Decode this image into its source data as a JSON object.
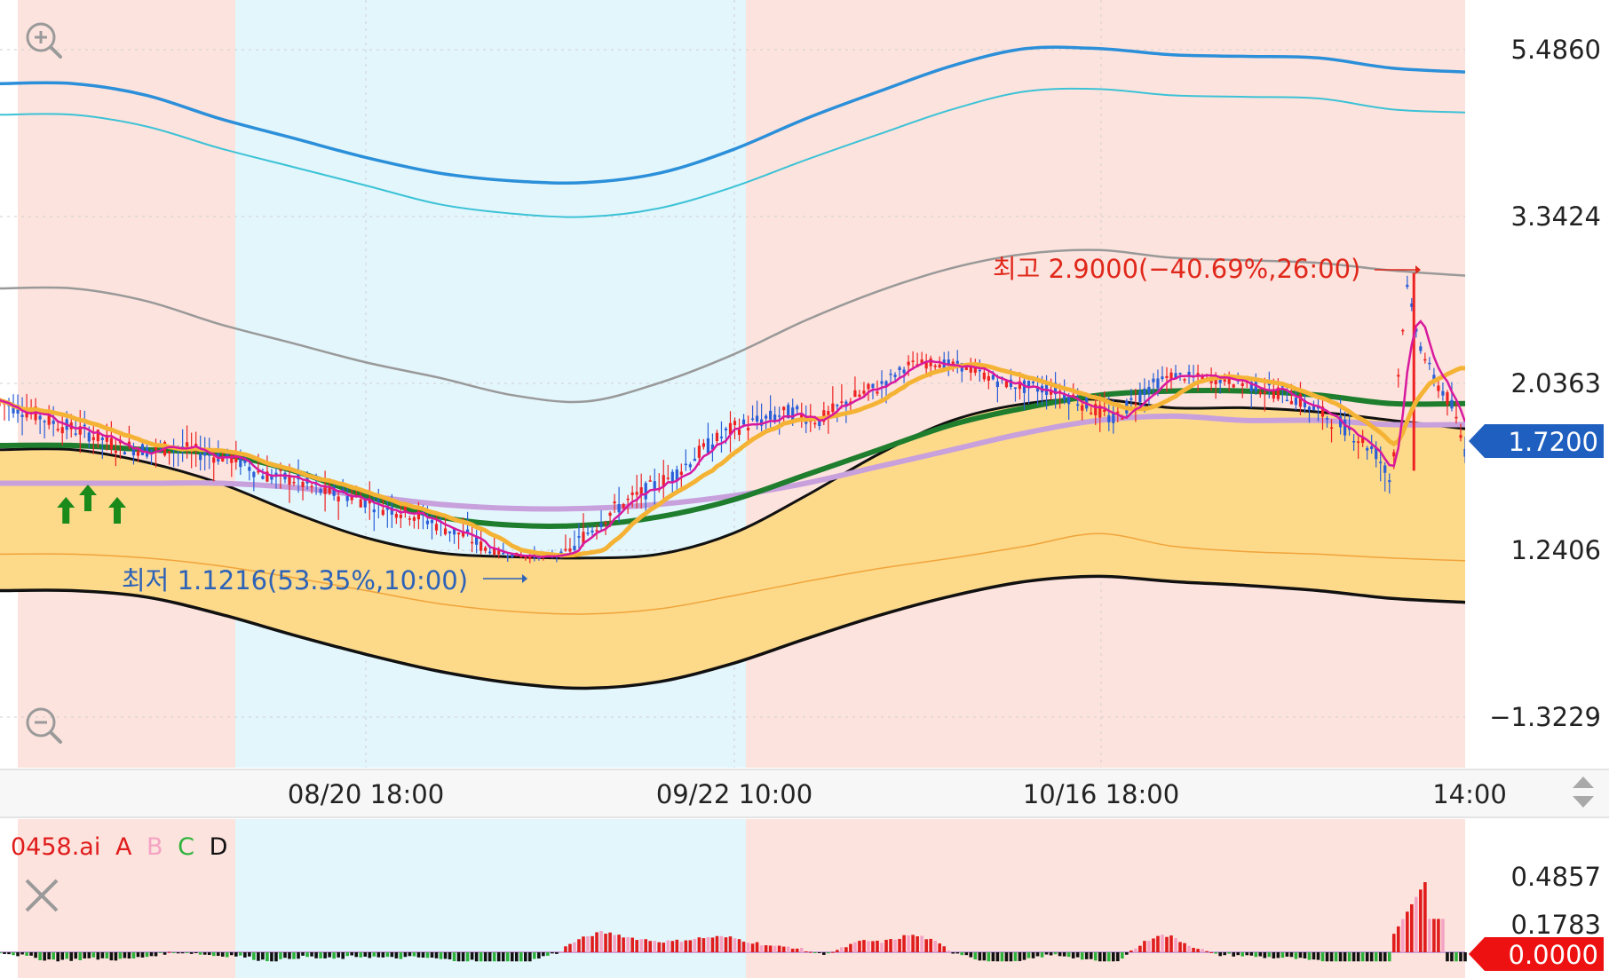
{
  "chart_data": {
    "type": "candlestick",
    "title": "",
    "main": {
      "y_ticks": [
        "5.4860",
        "3.3424",
        "2.0363",
        "1.2406",
        "−1.3229"
      ],
      "x_ticks": [
        "08/20 18:00",
        "09/22 10:00",
        "10/16 18:00",
        "14:00"
      ],
      "current_price": "1.7200",
      "annotations": {
        "high": {
          "label": "최고 2.9000(−40.69%,26:00)",
          "value": 2.9
        },
        "low": {
          "label": "최저 1.1216(53.35%,10:00)",
          "value": 1.1216
        }
      },
      "price_path": [
        [
          0,
          1.95
        ],
        [
          2,
          1.9
        ],
        [
          4,
          1.84
        ],
        [
          6,
          1.8
        ],
        [
          8,
          1.74
        ],
        [
          10,
          1.72
        ],
        [
          12,
          1.73
        ],
        [
          14,
          1.7
        ],
        [
          16,
          1.68
        ],
        [
          18,
          1.6
        ],
        [
          20,
          1.58
        ],
        [
          22,
          1.52
        ],
        [
          24,
          1.5
        ],
        [
          26,
          1.45
        ],
        [
          28,
          1.42
        ],
        [
          30,
          1.36
        ],
        [
          32,
          1.3
        ],
        [
          34,
          1.2
        ],
        [
          36,
          1.14
        ],
        [
          38,
          1.16
        ],
        [
          40,
          1.32
        ],
        [
          42,
          1.44
        ],
        [
          44,
          1.52
        ],
        [
          46,
          1.6
        ],
        [
          48,
          1.72
        ],
        [
          50,
          1.82
        ],
        [
          52,
          1.86
        ],
        [
          54,
          1.9
        ],
        [
          56,
          1.86
        ],
        [
          58,
          1.96
        ],
        [
          60,
          2.02
        ],
        [
          62,
          2.18
        ],
        [
          64,
          2.2
        ],
        [
          66,
          2.16
        ],
        [
          68,
          2.06
        ],
        [
          70,
          2.02
        ],
        [
          72,
          2.01
        ],
        [
          74,
          1.94
        ],
        [
          76,
          1.86
        ],
        [
          78,
          2.0
        ],
        [
          80,
          2.1
        ],
        [
          82,
          2.08
        ],
        [
          84,
          2.06
        ],
        [
          86,
          2.02
        ],
        [
          88,
          1.98
        ],
        [
          90,
          1.9
        ],
        [
          92,
          1.82
        ],
        [
          94,
          1.7
        ],
        [
          95,
          1.55
        ],
        [
          96,
          2.8
        ],
        [
          97,
          2.3
        ],
        [
          98,
          2.05
        ],
        [
          99,
          1.94
        ],
        [
          100,
          1.72
        ]
      ],
      "bands": {
        "outer_upper": [
          5.05,
          5.05,
          4.9,
          4.6,
          4.35,
          4.1,
          3.9,
          3.8,
          3.78,
          3.9,
          4.2,
          4.6,
          4.95,
          5.28,
          5.5,
          5.5,
          5.42,
          5.4,
          5.38,
          5.25,
          5.2
        ],
        "inner_upper": [
          4.65,
          4.65,
          4.5,
          4.22,
          3.98,
          3.74,
          3.5,
          3.38,
          3.34,
          3.45,
          3.72,
          4.07,
          4.4,
          4.72,
          4.95,
          4.98,
          4.9,
          4.88,
          4.86,
          4.72,
          4.68
        ],
        "gray_mid": [
          2.78,
          2.78,
          2.68,
          2.5,
          2.35,
          2.2,
          2.08,
          1.98,
          1.95,
          2.04,
          2.26,
          2.53,
          2.76,
          2.94,
          3.05,
          3.08,
          3.02,
          3.0,
          2.98,
          2.92,
          2.88
        ],
        "black_upper": [
          1.72,
          1.72,
          1.66,
          1.56,
          1.42,
          1.3,
          1.2,
          1.14,
          1.12,
          1.18,
          1.32,
          1.5,
          1.7,
          1.86,
          1.94,
          1.96,
          1.92,
          1.92,
          1.9,
          1.86,
          1.82
        ],
        "orange_mid": [
          1.18,
          1.18,
          1.12,
          1.0,
          0.82,
          0.62,
          0.42,
          0.3,
          0.26,
          0.34,
          0.54,
          0.76,
          0.96,
          1.12,
          1.26,
          1.32,
          1.26,
          1.22,
          1.18,
          1.12,
          1.08
        ],
        "black_lower": [
          0.62,
          0.62,
          0.52,
          0.26,
          -0.06,
          -0.36,
          -0.62,
          -0.8,
          -0.88,
          -0.78,
          -0.5,
          -0.12,
          0.24,
          0.54,
          0.76,
          0.84,
          0.76,
          0.7,
          0.62,
          0.5,
          0.44
        ],
        "green_ma": [
          1.74,
          1.74,
          1.72,
          1.7,
          1.62,
          1.5,
          1.4,
          1.36,
          1.36,
          1.4,
          1.48,
          1.6,
          1.72,
          1.84,
          1.92,
          1.98,
          2.0,
          2.0,
          1.98,
          1.94,
          1.94
        ],
        "lavender_ma": [
          1.56,
          1.56,
          1.56,
          1.56,
          1.54,
          1.5,
          1.46,
          1.44,
          1.44,
          1.46,
          1.5,
          1.56,
          1.64,
          1.72,
          1.8,
          1.86,
          1.88,
          1.86,
          1.86,
          1.84,
          1.84
        ]
      },
      "buy_signals": [
        4.5,
        6,
        8
      ]
    },
    "indicator": {
      "name": "0458.ai",
      "legend": [
        "A",
        "B",
        "C",
        "D"
      ],
      "y_ticks": [
        "0.4857",
        "0.1783"
      ],
      "current_value": "0.0000"
    }
  },
  "colors": {
    "pink_zone": "#fde3dd",
    "blue_zone": "#e3f6fc",
    "band_fill": "#fdd98a",
    "outer_band": "#2b8fd9",
    "inner_band": "#3cc2d6",
    "gray_line": "#999999",
    "green_ma": "#1e7e2e",
    "lavender_ma": "#c7a0dc",
    "orange_ma": "#f5b335",
    "magenta_ma": "#d8199e",
    "red_label": "#e0281b",
    "blue_label": "#2c62b8",
    "price_tag": "#1f5fc0",
    "value_tag": "#ee1111",
    "legend_a": "#e01c1c",
    "legend_b": "#f4a3c4",
    "legend_c": "#2db33c",
    "legend_d": "#111111"
  },
  "icons": {
    "zoom_in": "zoom-in-icon",
    "zoom_out": "zoom-out-icon",
    "close": "close-icon",
    "scroll": "up-down-arrow-icon"
  }
}
